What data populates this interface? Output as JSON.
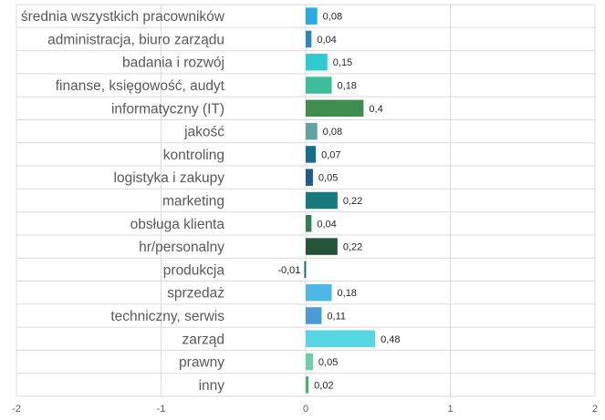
{
  "chart_data": {
    "type": "bar",
    "orientation": "horizontal",
    "categories": [
      "średnia wszystkich pracowników",
      "administracja, biuro zarządu",
      "badania i rozwój",
      "finanse, księgowość, audyt",
      "informatyczny (IT)",
      "jakość",
      "kontroling",
      "logistyka i zakupy",
      "marketing",
      "obsługa klienta",
      "hr/personalny",
      "produkcja",
      "sprzedaż",
      "techniczny, serwis",
      "zarząd",
      "prawny",
      "inny"
    ],
    "values": [
      0.08,
      0.04,
      0.15,
      0.18,
      0.4,
      0.08,
      0.07,
      0.05,
      0.22,
      0.04,
      0.22,
      -0.01,
      0.18,
      0.11,
      0.48,
      0.05,
      0.02
    ],
    "value_labels": [
      "0,08",
      "0,04",
      "0,15",
      "0,18",
      "0,4",
      "0,08",
      "0,07",
      "0,05",
      "0,22",
      "0,04",
      "0,22",
      "-0,01",
      "0,18",
      "0,11",
      "0,48",
      "0,05",
      "0,02"
    ],
    "bar_colors": [
      "#29ABE2",
      "#2E86C1",
      "#2ECCD0",
      "#3DBE9A",
      "#3E8E50",
      "#5FA3A3",
      "#146E8C",
      "#1E5A8C",
      "#167A7C",
      "#2E7D5B",
      "#24553A",
      "#1F6E6E",
      "#4DB8E8",
      "#4A9AD8",
      "#55D6E2",
      "#6BCFA8",
      "#4CAF6E"
    ],
    "xlim": [
      -2,
      2
    ],
    "xticks": [
      "-2",
      "-1",
      "0",
      "1",
      "2"
    ],
    "grid": true,
    "title": "",
    "xlabel": "",
    "ylabel": ""
  }
}
